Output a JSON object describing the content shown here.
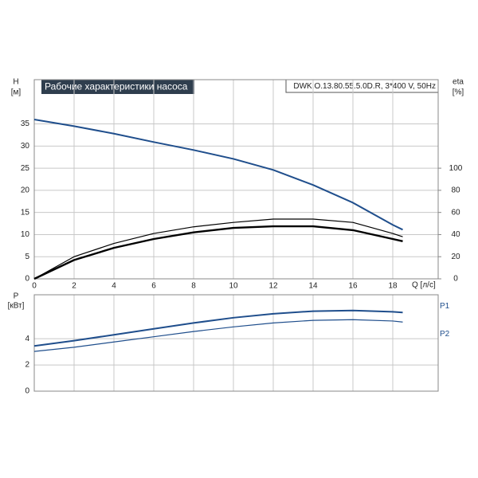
{
  "chart_data": [
    {
      "type": "line",
      "title": "Рабочие характеристики насоса",
      "subtitle": "DWK.O.13.80.55.5.0D.R, 3*400 V, 50Hz",
      "y_label": "H",
      "y_unit": "[м]",
      "y2_label": "eta",
      "y2_unit": "[%]",
      "x_label": "Q [л/с]",
      "x": [
        0,
        2,
        4,
        6,
        8,
        10,
        12,
        14,
        16,
        18,
        18.5
      ],
      "xlim": [
        0,
        20.28
      ],
      "xticks": [
        0,
        2,
        4,
        6,
        8,
        10,
        12,
        14,
        16,
        18
      ],
      "ylim": [
        0,
        45
      ],
      "yticks": [
        0,
        5,
        10,
        15,
        20,
        25,
        30,
        35
      ],
      "y2lim": [
        0,
        180
      ],
      "y2ticks": [
        0,
        20,
        40,
        60,
        80,
        100
      ],
      "grid": true,
      "series": [
        {
          "color": "#1f4e8c",
          "line_width": 2,
          "values": [
            36,
            34.5,
            32.8,
            30.9,
            29.1,
            27.1,
            24.6,
            21.2,
            17.2,
            12.2,
            11.1
          ]
        },
        {
          "color": "#000000",
          "line_width": 1.2,
          "axis": "y2",
          "values": [
            0,
            20,
            32,
            41,
            47,
            51,
            54,
            54,
            51,
            41,
            38
          ]
        },
        {
          "color": "#000000",
          "line_width": 2.4,
          "axis": "y2",
          "values": [
            0,
            17,
            28,
            36,
            42,
            46,
            47.5,
            47.5,
            44,
            36,
            34
          ]
        }
      ]
    },
    {
      "type": "line",
      "y_label": "P",
      "y_unit": "[кВт]",
      "x": [
        0,
        2,
        4,
        6,
        8,
        10,
        12,
        14,
        16,
        18,
        18.5
      ],
      "xlim": [
        0,
        20.28
      ],
      "ylim": [
        0,
        7.35
      ],
      "yticks": [
        0,
        2,
        4
      ],
      "grid": true,
      "series": [
        {
          "name": "P1",
          "color": "#1f4e8c",
          "line_width": 2,
          "values": [
            3.45,
            3.85,
            4.3,
            4.75,
            5.2,
            5.6,
            5.9,
            6.1,
            6.15,
            6.05,
            6.0
          ]
        },
        {
          "name": "P2",
          "color": "#1f4e8c",
          "line_width": 1.2,
          "values": [
            3.03,
            3.35,
            3.75,
            4.15,
            4.55,
            4.9,
            5.2,
            5.4,
            5.45,
            5.35,
            5.27
          ]
        }
      ]
    }
  ]
}
